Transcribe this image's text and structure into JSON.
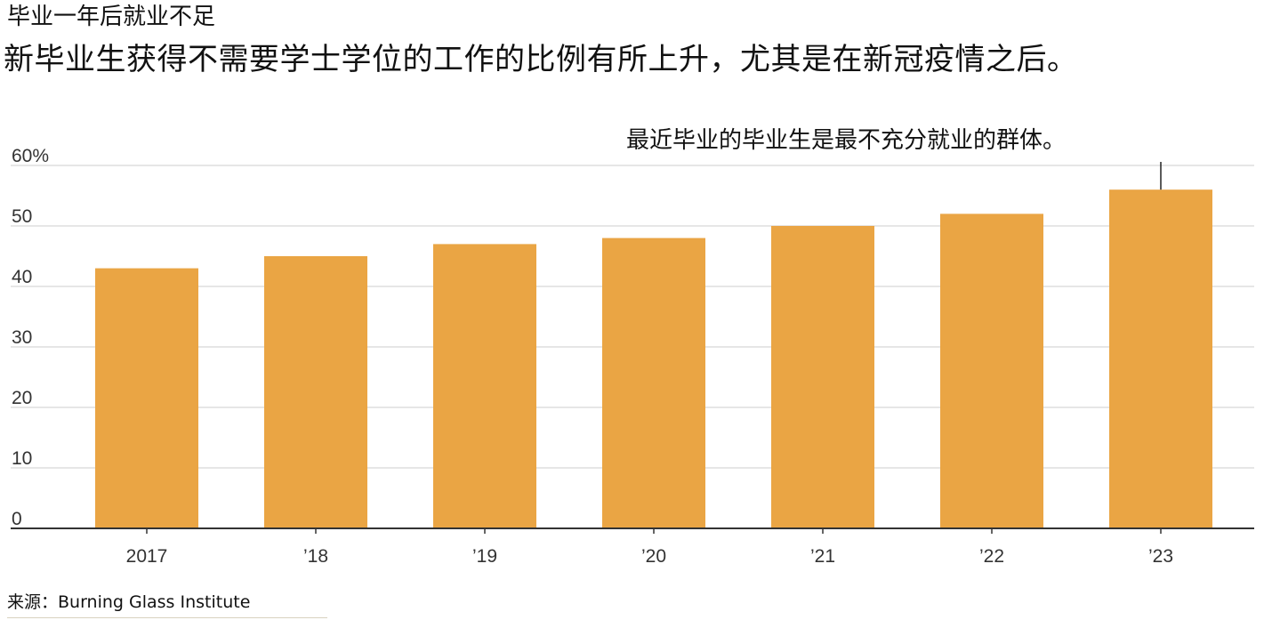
{
  "header": {
    "kicker": "毕业一年后就业不足",
    "headline": "新毕业生获得不需要学士学位的工作的比例有所上升，尤其是在新冠疫情之后。"
  },
  "chart_data": {
    "type": "bar",
    "categories": [
      "2017",
      "’18",
      "’19",
      "’20",
      "’21",
      "’22",
      "’23"
    ],
    "values": [
      43,
      45,
      47,
      48,
      50,
      52,
      56
    ],
    "ylim": [
      0,
      60
    ],
    "yticks": [
      0,
      10,
      20,
      30,
      40,
      50,
      60
    ],
    "ytick_labels": [
      "0",
      "10",
      "20",
      "30",
      "40",
      "50",
      "60%"
    ],
    "annotation": {
      "text": "最近毕业的毕业生是最不充分就业的群体。",
      "category": "’23"
    },
    "grid": true,
    "bar_color": "#eaa544",
    "grid_color": "#dddddd",
    "axis_color": "#333333"
  },
  "footer": {
    "source": "来源：Burning Glass Institute"
  }
}
